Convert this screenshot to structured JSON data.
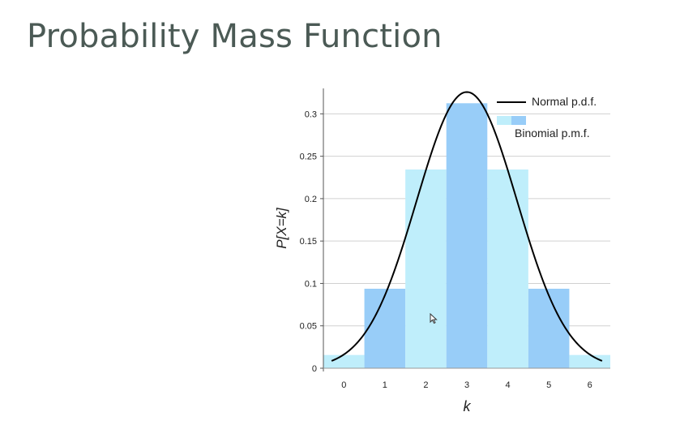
{
  "slide": {
    "title": "Probability Mass Function"
  },
  "chart_data": {
    "type": "bar",
    "x": [
      0,
      1,
      2,
      3,
      4,
      5,
      6
    ],
    "binomial_pmf": [
      0.015625,
      0.09375,
      0.234375,
      0.3125,
      0.234375,
      0.09375,
      0.015625
    ],
    "normal_pdf": {
      "mean": 3,
      "sd": 1.2247
    },
    "series": [
      {
        "name": "Normal p.d.f.",
        "kind": "line",
        "color": "#000000"
      },
      {
        "name": "Binomial p.m.f.",
        "kind": "bar",
        "colors": [
          "#bfeefb",
          "#98cdf8"
        ]
      }
    ],
    "xlabel": "k",
    "ylabel": "P[X=k]",
    "xlim": [
      -0.5,
      6.5
    ],
    "ylim": [
      0,
      0.33
    ],
    "yticks": [
      0,
      0.05,
      0.1,
      0.15,
      0.2,
      0.25,
      0.3
    ],
    "ytick_labels": [
      "0",
      "0.05",
      "0.1",
      "0.15",
      "0.2",
      "0.25",
      "0.3"
    ],
    "xticks": [
      0,
      1,
      2,
      3,
      4,
      5,
      6
    ],
    "xtick_labels": [
      "0",
      "1",
      "2",
      "3",
      "4",
      "5",
      "6"
    ],
    "grid": true,
    "legend_position": "top-right"
  },
  "colors": {
    "title": "#4b5a55",
    "bar_light": "#bfeefb",
    "bar_dark": "#98cdf8",
    "grid": "#d0d0d0",
    "axis": "#555555"
  }
}
